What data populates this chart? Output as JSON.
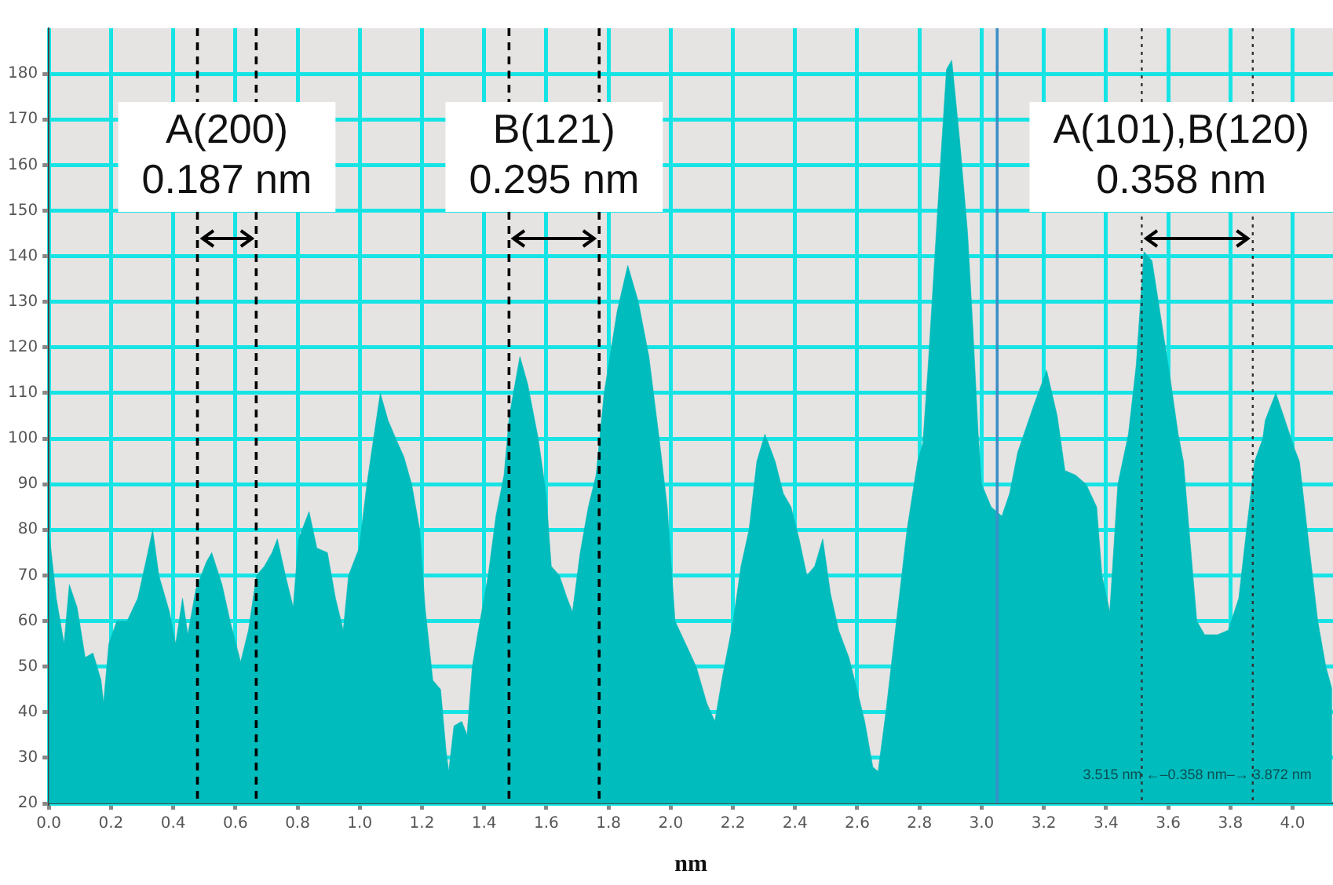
{
  "chart_data": {
    "type": "area",
    "xlabel": "nm",
    "color": "#00bcbc",
    "grid": true,
    "x": [
      0,
      0.024,
      0.049,
      0.066,
      0.091,
      0.117,
      0.142,
      0.168,
      0.176,
      0.193,
      0.219,
      0.252,
      0.286,
      0.312,
      0.334,
      0.354,
      0.388,
      0.408,
      0.43,
      0.447,
      0.473,
      0.507,
      0.524,
      0.557,
      0.583,
      0.617,
      0.642,
      0.668,
      0.693,
      0.718,
      0.735,
      0.761,
      0.786,
      0.803,
      0.837,
      0.862,
      0.896,
      0.922,
      0.947,
      0.964,
      0.998,
      1.023,
      1.04,
      1.066,
      1.091,
      1.116,
      1.142,
      1.167,
      1.193,
      1.21,
      1.235,
      1.26,
      1.277,
      1.286,
      1.303,
      1.328,
      1.345,
      1.362,
      1.379,
      1.413,
      1.438,
      1.464,
      1.481,
      1.515,
      1.54,
      1.574,
      1.599,
      1.616,
      1.642,
      1.667,
      1.684,
      1.709,
      1.735,
      1.76,
      1.786,
      1.828,
      1.862,
      1.896,
      1.93,
      1.963,
      1.989,
      2.014,
      2.048,
      2.082,
      2.116,
      2.142,
      2.167,
      2.201,
      2.226,
      2.252,
      2.277,
      2.303,
      2.336,
      2.362,
      2.387,
      2.413,
      2.438,
      2.463,
      2.489,
      2.514,
      2.54,
      2.573,
      2.599,
      2.624,
      2.65,
      2.667,
      2.692,
      2.726,
      2.76,
      2.794,
      2.811,
      2.828,
      2.845,
      2.87,
      2.887,
      2.904,
      2.93,
      2.955,
      2.972,
      2.989,
      3.0,
      3.031,
      3.065,
      3.09,
      3.116,
      3.166,
      3.209,
      3.243,
      3.268,
      3.302,
      3.336,
      3.37,
      3.387,
      3.412,
      3.438,
      3.472,
      3.497,
      3.522,
      3.548,
      3.573,
      3.607,
      3.632,
      3.649,
      3.666,
      3.692,
      3.717,
      3.759,
      3.793,
      3.827,
      3.852,
      3.878,
      3.904,
      3.912,
      3.946,
      3.971,
      4.005,
      4.022,
      4.047,
      4.081,
      4.107,
      4.127
    ],
    "values": [
      80,
      65,
      55,
      68,
      63,
      52,
      53,
      47,
      42,
      55,
      60,
      60,
      65,
      73,
      80,
      70,
      62,
      55,
      65,
      57,
      67,
      73,
      75,
      68,
      60,
      51,
      58,
      70,
      72,
      75,
      78,
      70,
      63,
      78,
      84,
      76,
      75,
      65,
      58,
      70,
      76,
      90,
      98,
      110,
      104,
      100,
      96,
      90,
      80,
      63,
      47,
      45,
      32,
      27,
      37,
      38,
      35,
      50,
      57,
      70,
      83,
      92,
      105,
      118,
      112,
      100,
      88,
      72,
      70,
      65,
      62,
      75,
      85,
      92,
      110,
      128,
      138,
      130,
      118,
      100,
      85,
      60,
      55,
      50,
      42,
      38,
      48,
      60,
      72,
      80,
      95,
      101,
      95,
      88,
      85,
      78,
      70,
      72,
      78,
      66,
      58,
      52,
      45,
      38,
      28,
      27,
      40,
      60,
      80,
      95,
      99,
      116,
      135,
      163,
      181,
      183,
      165,
      145,
      124,
      101,
      90,
      85,
      83,
      88,
      97,
      107,
      115,
      105,
      93,
      92,
      90,
      85,
      70,
      62,
      90,
      101,
      116,
      141,
      139,
      128,
      113,
      101,
      95,
      81,
      60,
      57,
      57,
      58,
      65,
      80,
      95,
      100,
      104,
      110,
      105,
      98,
      95,
      80,
      60,
      50,
      45
    ],
    "xlim": [
      0,
      4.13
    ],
    "ylim": [
      20,
      190
    ],
    "xticks": [
      {
        "value": 0,
        "label": "0.0"
      },
      0.2,
      0.4,
      0.6,
      0.8,
      {
        "value": 1,
        "label": "1.0"
      },
      1.2,
      1.4,
      1.6,
      1.8,
      {
        "value": 2,
        "label": "2.0"
      },
      2.2,
      2.4,
      2.6,
      2.8,
      {
        "value": 3,
        "label": "3.0"
      },
      3.2,
      3.4,
      3.6,
      3.8,
      {
        "value": 4,
        "label": "4.0"
      }
    ],
    "yticks": [
      20,
      30,
      40,
      50,
      60,
      70,
      80,
      90,
      100,
      110,
      120,
      130,
      140,
      150,
      160,
      170,
      180
    ],
    "ref_lines": [
      {
        "axis": "x",
        "value": 0.478,
        "color": "#000000",
        "line_style": "dashed"
      },
      {
        "axis": "x",
        "value": 0.667,
        "color": "#000000",
        "line_style": "dashed"
      },
      {
        "axis": "x",
        "value": 1.48,
        "color": "#000000",
        "line_style": "dashed"
      },
      {
        "axis": "x",
        "value": 1.77,
        "color": "#000000",
        "line_style": "dashed"
      },
      {
        "axis": "x",
        "value": 3.515,
        "color": "#333333",
        "line_style": "dotted"
      },
      {
        "axis": "x",
        "value": 3.872,
        "color": "#333333",
        "line_style": "dotted"
      },
      {
        "axis": "x",
        "value": 3.05,
        "color": "#3a8fc8",
        "line_style": "solid"
      }
    ],
    "annotations": [
      "A(200)\n0.187 nm",
      "B(121)\n0.295 nm",
      "A(101),B(120)\n0.358 nm",
      "3.515 nm ←–0.358 nm–→ 3.872 nm"
    ]
  }
}
